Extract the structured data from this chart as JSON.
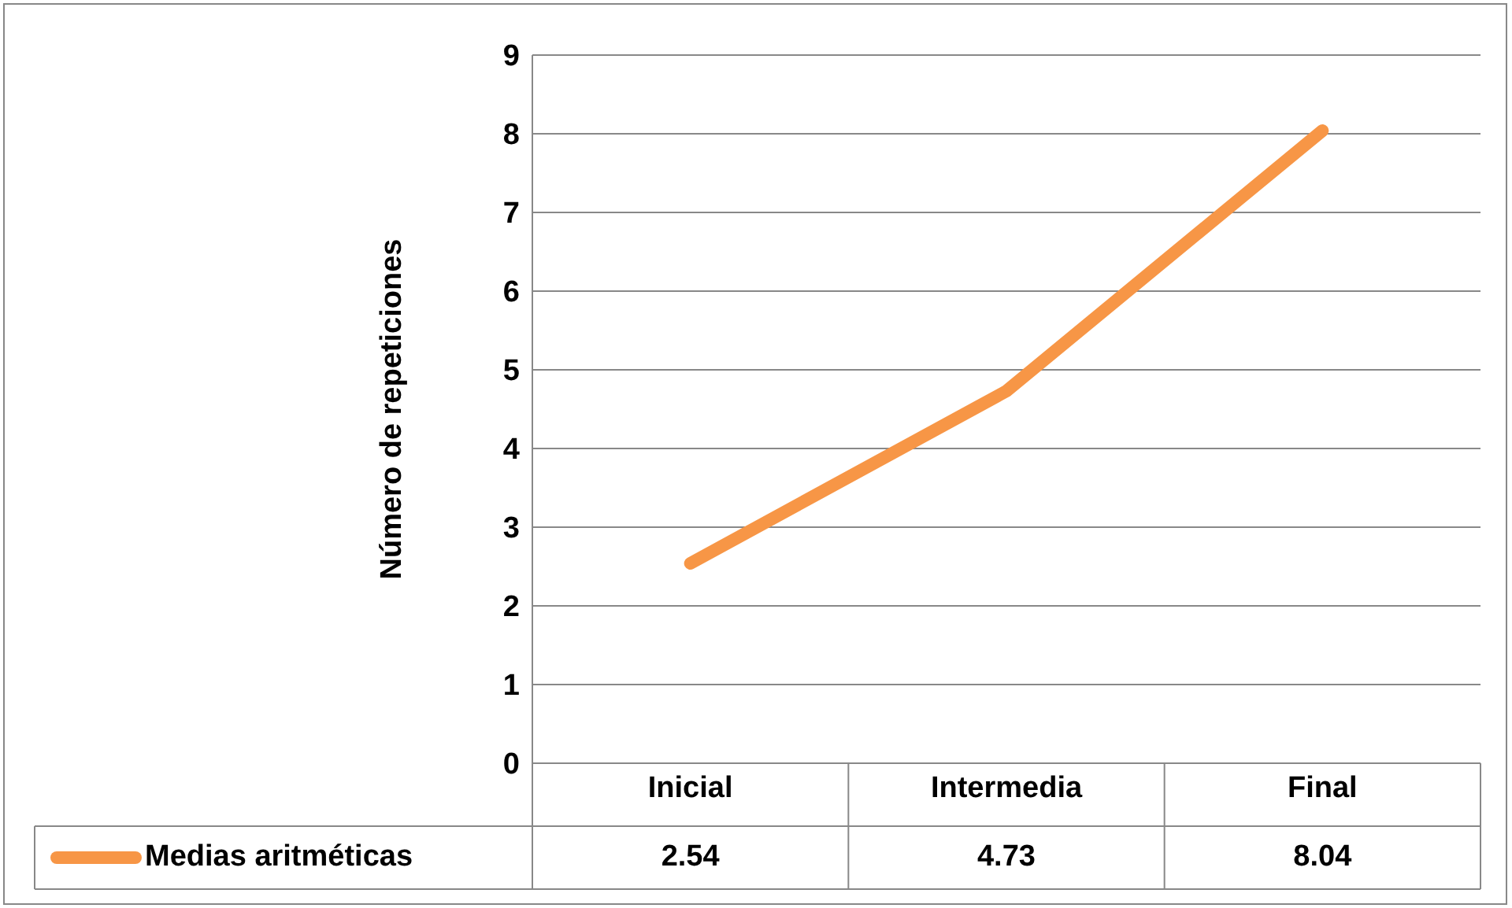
{
  "chart_data": {
    "type": "line",
    "ylabel": "Número de repeticiones",
    "categories": [
      "Inicial",
      "Intermedia",
      "Final"
    ],
    "series": [
      {
        "name": "Medias aritméticas",
        "color": "#f79646",
        "values": [
          2.54,
          4.73,
          8.04
        ]
      }
    ],
    "ylim": [
      0,
      9
    ],
    "yticks": [
      0,
      1,
      2,
      3,
      4,
      5,
      6,
      7,
      8,
      9
    ],
    "grid": "y",
    "legend": "bottom left",
    "data_labels": true,
    "marker": "none",
    "line_style": "solid"
  }
}
